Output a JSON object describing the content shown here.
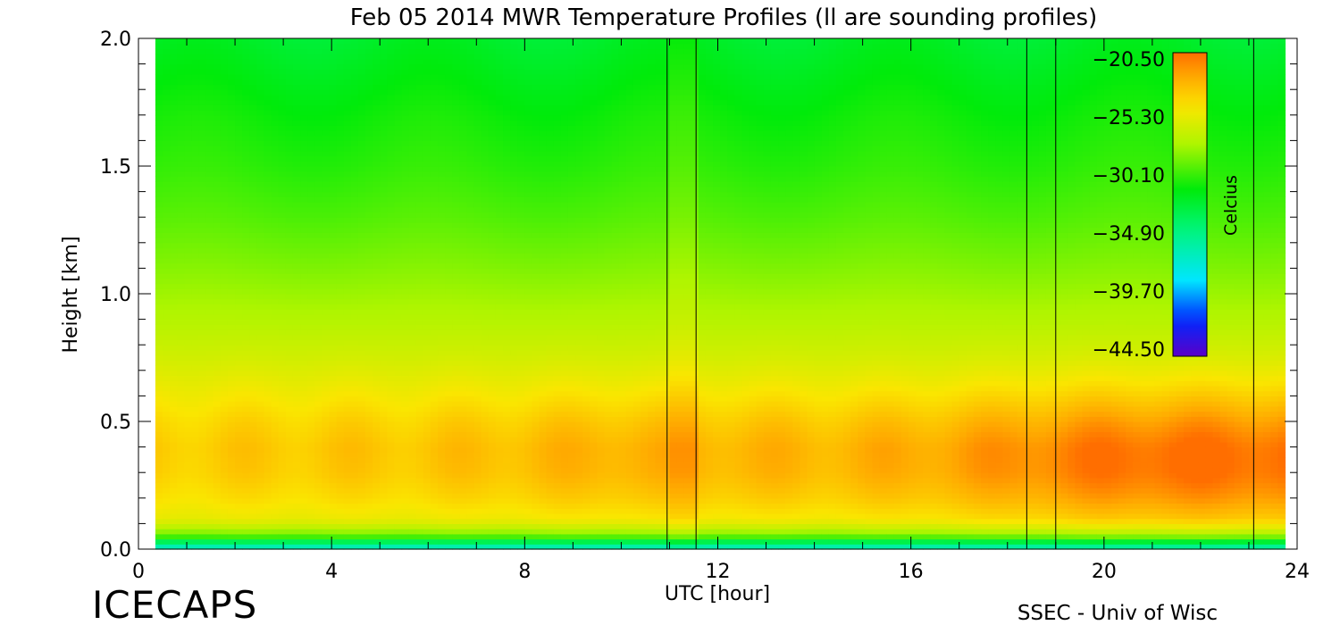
{
  "chart_data": {
    "type": "heatmap",
    "title": "Feb 05 2014 MWR Temperature Profiles (ll are sounding profiles)",
    "xlabel": "UTC [hour]",
    "ylabel": "Height [km]",
    "xlim": [
      0,
      24
    ],
    "ylim": [
      0,
      2.0
    ],
    "x_ticks": [
      "0",
      "4",
      "8",
      "12",
      "16",
      "20",
      "24"
    ],
    "y_ticks": [
      "0.0",
      "0.5",
      "1.0",
      "1.5",
      "2.0"
    ],
    "data_x_range": [
      0.35,
      23.75
    ],
    "colorbar": {
      "label": "Celcius",
      "tick_labels": [
        "-20.50",
        "-25.30",
        "-30.10",
        "-34.90",
        "-39.70",
        "-44.50"
      ],
      "range": [
        -44.5,
        -20.5
      ]
    },
    "sounding_times": [
      10.95,
      11.55,
      18.4,
      19.0,
      23.1
    ],
    "sounding_gap": [
      10.95,
      11.55
    ],
    "profile": {
      "height_km": [
        0.0,
        0.03,
        0.05,
        0.08,
        0.12,
        0.2,
        0.3,
        0.4,
        0.5,
        0.6,
        0.75,
        0.9,
        1.1,
        1.3,
        1.5,
        1.7,
        1.9,
        2.0
      ],
      "base_temperature_c": [
        -37.5,
        -33.5,
        -30.0,
        -27.5,
        -25.6,
        -24.7,
        -24.0,
        -23.8,
        -24.3,
        -25.1,
        -26.4,
        -27.5,
        -28.6,
        -29.6,
        -30.4,
        -31.0,
        -31.8,
        -32.2
      ]
    },
    "warm_layer_anomaly": {
      "hours": [
        0,
        2,
        4,
        6,
        8,
        10,
        12,
        14,
        16,
        18,
        20,
        22,
        24
      ],
      "delta_c": [
        0.0,
        0.2,
        0.3,
        0.4,
        0.8,
        1.3,
        1.1,
        1.0,
        1.4,
        2.2,
        3.3,
        3.6,
        3.3
      ]
    },
    "annotations": {
      "footer_left": "ICECAPS",
      "footer_right": "SSEC - Univ of Wisc"
    }
  }
}
